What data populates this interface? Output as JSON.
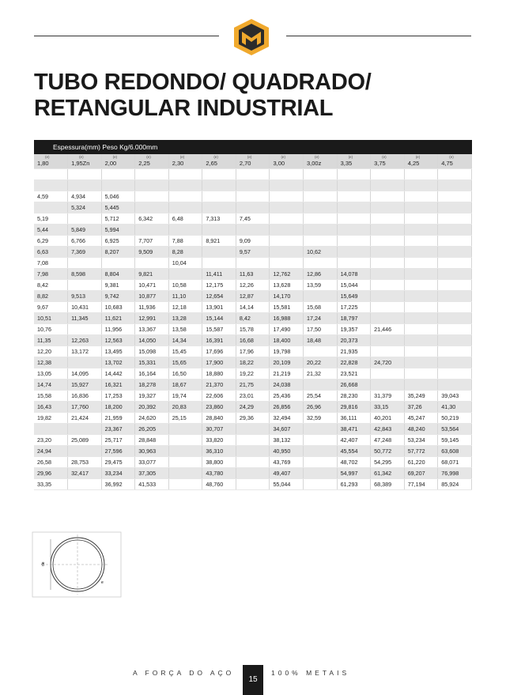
{
  "header": {
    "title_line1": "TUBO REDONDO/ QUADRADO/",
    "title_line2": "RETANGULAR INDUSTRIAL"
  },
  "table": {
    "caption": "Espessura(mm) Peso Kg/6.000mm",
    "unit_label": "(e)",
    "columns": [
      "1,80",
      "1,95Zn",
      "2,00",
      "2,25",
      "2,30",
      "2,65",
      "2,70",
      "3,00",
      "3,00z",
      "3,35",
      "3,75",
      "4,25",
      "4,75"
    ],
    "rows": [
      [
        null,
        null,
        null,
        null,
        null,
        null,
        null,
        null,
        null,
        null,
        null,
        null,
        null
      ],
      [
        null,
        null,
        null,
        null,
        null,
        null,
        null,
        null,
        null,
        null,
        null,
        null,
        null
      ],
      [
        "4,59",
        "4,934",
        "5,046",
        null,
        null,
        null,
        null,
        null,
        null,
        null,
        null,
        null,
        null
      ],
      [
        null,
        "5,324",
        "5,445",
        null,
        null,
        null,
        null,
        null,
        null,
        null,
        null,
        null,
        null
      ],
      [
        "5,19",
        null,
        "5,712",
        "6,342",
        "6,48",
        "7,313",
        "7,45",
        null,
        null,
        null,
        null,
        null,
        null
      ],
      [
        "5,44",
        "5,849",
        "5,994",
        null,
        null,
        null,
        null,
        null,
        null,
        null,
        null,
        null,
        null
      ],
      [
        "6,29",
        "6,766",
        "6,925",
        "7,707",
        "7,88",
        "8,921",
        "9,09",
        null,
        null,
        null,
        null,
        null,
        null
      ],
      [
        "6,63",
        "7,369",
        "8,207",
        "9,509",
        "8,28",
        null,
        "9,57",
        null,
        "10,62",
        null,
        null,
        null,
        null
      ],
      [
        "7,08",
        null,
        null,
        null,
        "10,04",
        null,
        null,
        null,
        null,
        null,
        null,
        null,
        null
      ],
      [
        "7,98",
        "8,598",
        "8,804",
        "9,821",
        null,
        "11,411",
        "11,63",
        "12,762",
        "12,86",
        "14,078",
        null,
        null,
        null
      ],
      [
        "8,42",
        null,
        "9,381",
        "10,471",
        "10,58",
        "12,175",
        "12,26",
        "13,628",
        "13,59",
        "15,044",
        null,
        null,
        null
      ],
      [
        "8,82",
        "9,513",
        "9,742",
        "10,877",
        "11,10",
        "12,654",
        "12,87",
        "14,170",
        null,
        "15,649",
        null,
        null,
        null
      ],
      [
        "9,67",
        "10,431",
        "10,683",
        "11,936",
        "12,18",
        "13,901",
        "14,14",
        "15,581",
        "15,68",
        "17,225",
        null,
        null,
        null
      ],
      [
        "10,51",
        "11,345",
        "11,621",
        "12,991",
        "13,28",
        "15,144",
        "8,42",
        "16,988",
        "17,24",
        "18,797",
        null,
        null,
        null
      ],
      [
        "10,76",
        null,
        "11,956",
        "13,367",
        "13,58",
        "15,587",
        "15,78",
        "17,490",
        "17,50",
        "19,357",
        "21,446",
        null,
        null
      ],
      [
        "11,35",
        "12,263",
        "12,563",
        "14,050",
        "14,34",
        "16,391",
        "16,68",
        "18,400",
        "18,48",
        "20,373",
        null,
        null,
        null
      ],
      [
        "12,20",
        "13,172",
        "13,495",
        "15,098",
        "15,45",
        "17,696",
        "17,96",
        "19,798",
        null,
        "21,935",
        null,
        null,
        null
      ],
      [
        "12,38",
        null,
        "13,702",
        "15,331",
        "15,65",
        "17,900",
        "18,22",
        "20,109",
        "20,22",
        "22,828",
        "24,720",
        null,
        null
      ],
      [
        "13,05",
        "14,095",
        "14,442",
        "16,164",
        "16,50",
        "18,880",
        "19,22",
        "21,219",
        "21,32",
        "23,521",
        null,
        null,
        null
      ],
      [
        "14,74",
        "15,927",
        "16,321",
        "18,278",
        "18,67",
        "21,370",
        "21,75",
        "24,038",
        null,
        "26,668",
        null,
        null,
        null
      ],
      [
        "15,58",
        "16,836",
        "17,253",
        "19,327",
        "19,74",
        "22,606",
        "23,01",
        "25,436",
        "25,54",
        "28,230",
        "31,379",
        "35,249",
        "39,043"
      ],
      [
        "16,43",
        "17,760",
        "18,200",
        "20,392",
        "20,83",
        "23,860",
        "24,29",
        "26,856",
        "26,96",
        "29,816",
        "33,15",
        "37,26",
        "41,30"
      ],
      [
        "19,82",
        "21,424",
        "21,959",
        "24,620",
        "25,15",
        "28,840",
        "29,36",
        "32,494",
        "32,59",
        "36,111",
        "40,201",
        "45,247",
        "50,219"
      ],
      [
        null,
        null,
        "23,367",
        "26,205",
        null,
        "30,707",
        null,
        "34,607",
        null,
        "38,471",
        "42,843",
        "48,240",
        "53,564"
      ],
      [
        "23,20",
        "25,089",
        "25,717",
        "28,848",
        null,
        "33,820",
        null,
        "38,132",
        null,
        "42,407",
        "47,248",
        "53,234",
        "59,145"
      ],
      [
        "24,94",
        null,
        "27,596",
        "30,963",
        null,
        "36,310",
        null,
        "40,950",
        null,
        "45,554",
        "50,772",
        "57,772",
        "63,608"
      ],
      [
        "26,58",
        "28,753",
        "29,475",
        "33,077",
        null,
        "38,800",
        null,
        "43,769",
        null,
        "48,702",
        "54,295",
        "61,220",
        "68,071"
      ],
      [
        "29,96",
        "32,417",
        "33,234",
        "37,305",
        null,
        "43,780",
        null,
        "49,407",
        null,
        "54,997",
        "61,342",
        "69,207",
        "76,998"
      ],
      [
        "33,35",
        null,
        "36,992",
        "41,533",
        null,
        "48,760",
        null,
        "55,044",
        null,
        "61,293",
        "68,389",
        "77,194",
        "85,924"
      ]
    ]
  },
  "diagram": {
    "label_diameter": "de",
    "label_thickness": "e"
  },
  "footer": {
    "left": "A FORÇA DO AÇO",
    "page": "15",
    "right": "100% METAIS"
  }
}
